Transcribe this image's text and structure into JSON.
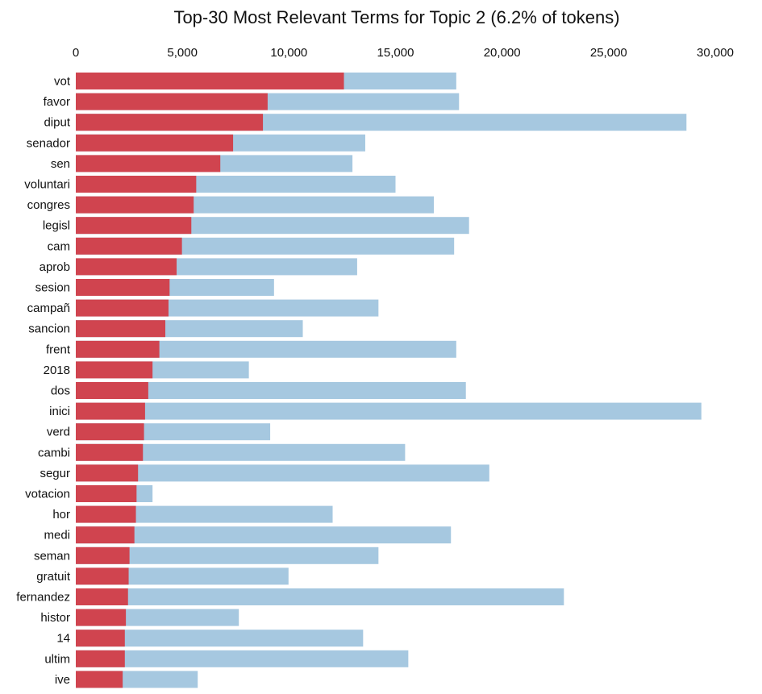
{
  "chart_data": {
    "type": "bar",
    "orientation": "horizontal",
    "layout": "overlaid",
    "title": "Top-30 Most Relevant Terms for Topic 2 (6.2% of tokens)",
    "xlabel": "",
    "ylabel": "",
    "xlim": [
      0,
      30000
    ],
    "x_ticks": [
      0,
      5000,
      10000,
      15000,
      20000,
      25000,
      30000
    ],
    "x_tick_labels": [
      "0",
      "5,000",
      "10,000",
      "15,000",
      "20,000",
      "25,000",
      "30,000"
    ],
    "x_axis_position": "top",
    "grid": false,
    "legend": "none",
    "categories": [
      "vot",
      "favor",
      "diput",
      "senador",
      "sen",
      "voluntari",
      "congres",
      "legisl",
      "cam",
      "aprob",
      "sesion",
      "campañ",
      "sancion",
      "frent",
      "2018",
      "dos",
      "inici",
      "verd",
      "cambi",
      "segur",
      "votacion",
      "hor",
      "medi",
      "seman",
      "gratuit",
      "fernandez",
      "histor",
      "14",
      "ultim",
      "ive"
    ],
    "series": [
      {
        "color": "#a6c8e0",
        "values": [
          17850,
          17980,
          28650,
          13580,
          12980,
          15000,
          16800,
          18450,
          17750,
          13200,
          9300,
          14200,
          10650,
          17850,
          8120,
          18300,
          29350,
          9120,
          15450,
          19400,
          3600,
          12050,
          17600,
          14200,
          9980,
          22900,
          7650,
          13480,
          15600,
          5720
        ]
      },
      {
        "color": "#d0444f",
        "values": [
          12580,
          9000,
          8780,
          7380,
          6780,
          5650,
          5530,
          5420,
          4980,
          4730,
          4400,
          4350,
          4200,
          3920,
          3600,
          3400,
          3250,
          3200,
          3150,
          2920,
          2850,
          2820,
          2750,
          2520,
          2480,
          2450,
          2350,
          2300,
          2300,
          2200
        ]
      }
    ]
  }
}
